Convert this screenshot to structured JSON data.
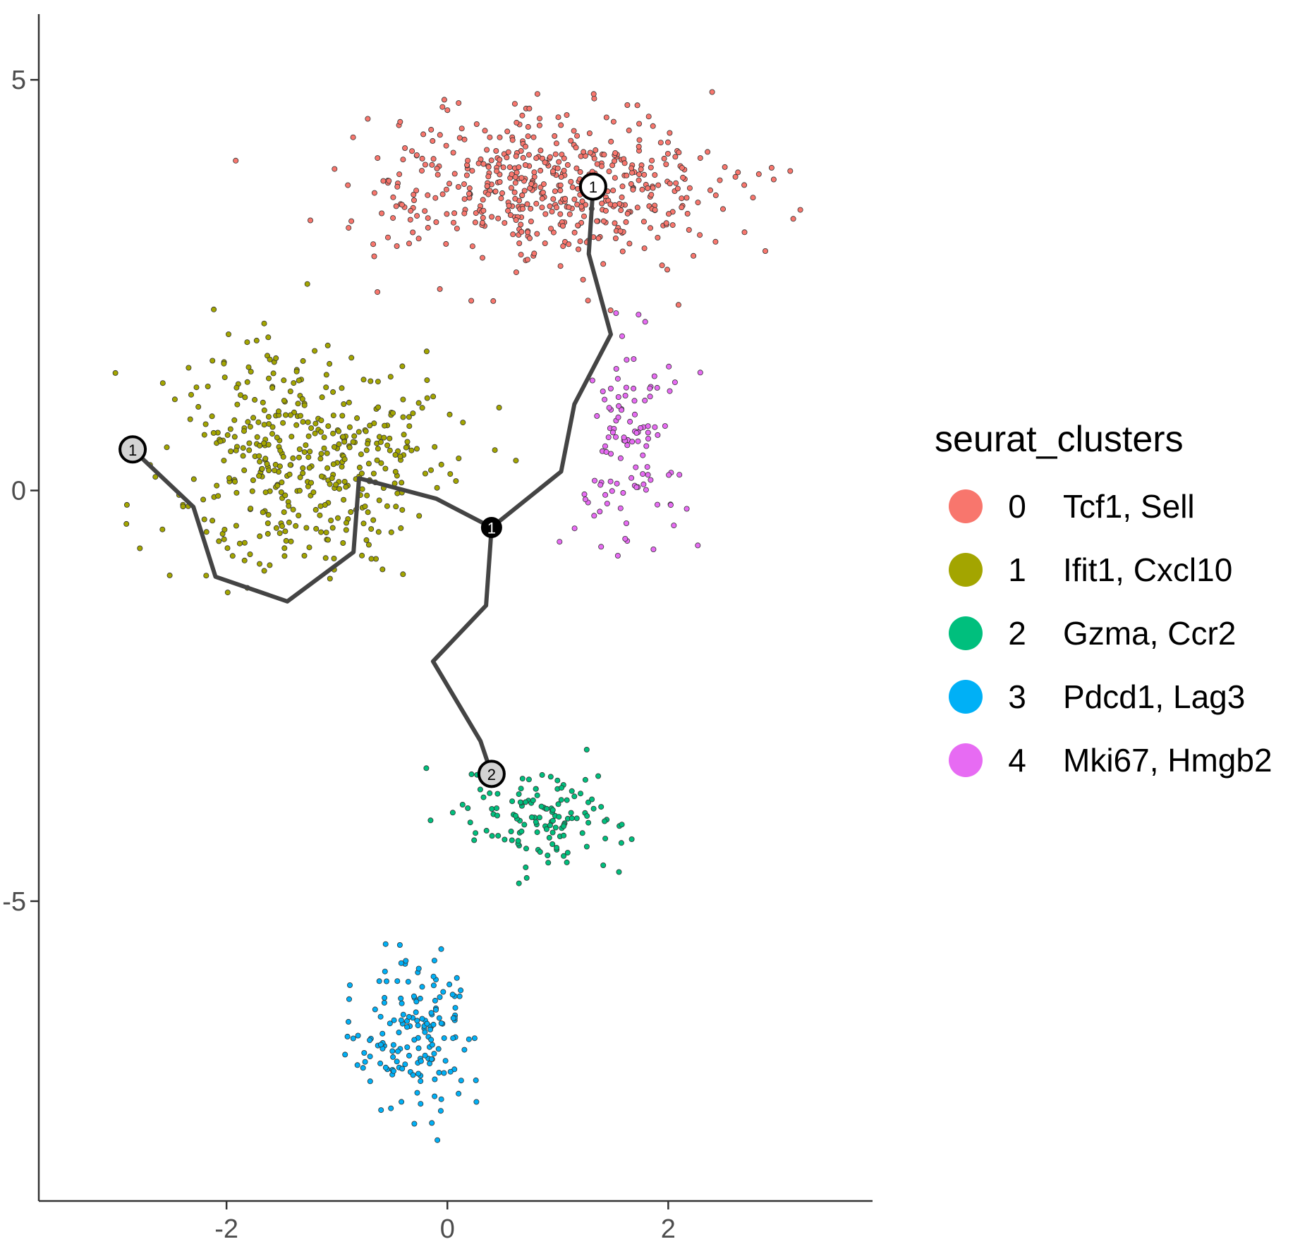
{
  "chart_data": {
    "type": "scatter",
    "title": "",
    "xlabel": "",
    "ylabel": "",
    "xlim": [
      -3.7,
      3.85
    ],
    "ylim": [
      -8.65,
      5.8
    ],
    "x_ticks": [
      {
        "value": -2,
        "label": "-2"
      },
      {
        "value": 0,
        "label": "0"
      },
      {
        "value": 2,
        "label": "2"
      }
    ],
    "y_ticks": [
      {
        "value": 5,
        "label": "5"
      },
      {
        "value": 0,
        "label": "0"
      },
      {
        "value": -5,
        "label": "-5"
      }
    ],
    "grid": false,
    "legend": {
      "title": "seurat_clusters",
      "position": "right",
      "entries": [
        {
          "key": "0",
          "label": "Tcf1, Sell",
          "color": "#F8766D"
        },
        {
          "key": "1",
          "label": "Ifit1, Cxcl10",
          "color": "#A3A500"
        },
        {
          "key": "2",
          "label": "Gzma, Ccr2",
          "color": "#00BF7D"
        },
        {
          "key": "3",
          "label": "Pdcd1, Lag3",
          "color": "#00B0F6"
        },
        {
          "key": "4",
          "label": "Mki67, Hmgb2",
          "color": "#E76BF3"
        }
      ]
    },
    "clusters": [
      {
        "key": "0",
        "color": "#F8766D",
        "n": 520,
        "center": [
          0.9,
          3.7
        ],
        "spread": [
          1.35,
          0.75
        ]
      },
      {
        "key": "1",
        "color": "#A3A500",
        "n": 430,
        "center": [
          -1.3,
          0.4
        ],
        "spread": [
          1.0,
          1.2
        ]
      },
      {
        "key": "2",
        "color": "#00BF7D",
        "n": 130,
        "center": [
          0.9,
          -4.0
        ],
        "spread": [
          0.65,
          0.45
        ]
      },
      {
        "key": "3",
        "color": "#00B0F6",
        "n": 160,
        "center": [
          -0.3,
          -6.6
        ],
        "spread": [
          0.45,
          0.75
        ]
      },
      {
        "key": "4",
        "color": "#E76BF3",
        "n": 110,
        "center": [
          1.65,
          0.7
        ],
        "spread": [
          0.4,
          1.1
        ]
      }
    ],
    "trajectory": {
      "line_color": "#444444",
      "segments": [
        [
          [
            -2.85,
            0.5
          ],
          [
            -2.3,
            -0.2
          ],
          [
            -2.1,
            -1.05
          ],
          [
            -1.45,
            -1.35
          ],
          [
            -0.85,
            -0.75
          ],
          [
            -0.8,
            0.15
          ],
          [
            -0.1,
            -0.1
          ],
          [
            0.4,
            -0.45
          ]
        ],
        [
          [
            0.4,
            -0.45
          ],
          [
            1.03,
            0.23
          ],
          [
            1.15,
            1.05
          ],
          [
            1.48,
            1.9
          ],
          [
            1.28,
            2.88
          ],
          [
            1.32,
            3.7
          ]
        ],
        [
          [
            0.4,
            -0.45
          ],
          [
            0.35,
            -1.4
          ],
          [
            -0.13,
            -2.08
          ],
          [
            0.3,
            -3.05
          ],
          [
            0.4,
            -3.45
          ]
        ]
      ],
      "nodes": [
        {
          "label": "1",
          "x": -2.85,
          "y": 0.5,
          "kind": "root"
        },
        {
          "label": "1",
          "x": 1.32,
          "y": 3.7,
          "kind": "leaf"
        },
        {
          "label": "2",
          "x": 0.4,
          "y": -3.45,
          "kind": "root"
        },
        {
          "label": "1",
          "x": 0.4,
          "y": -0.45,
          "kind": "branch"
        }
      ]
    }
  }
}
